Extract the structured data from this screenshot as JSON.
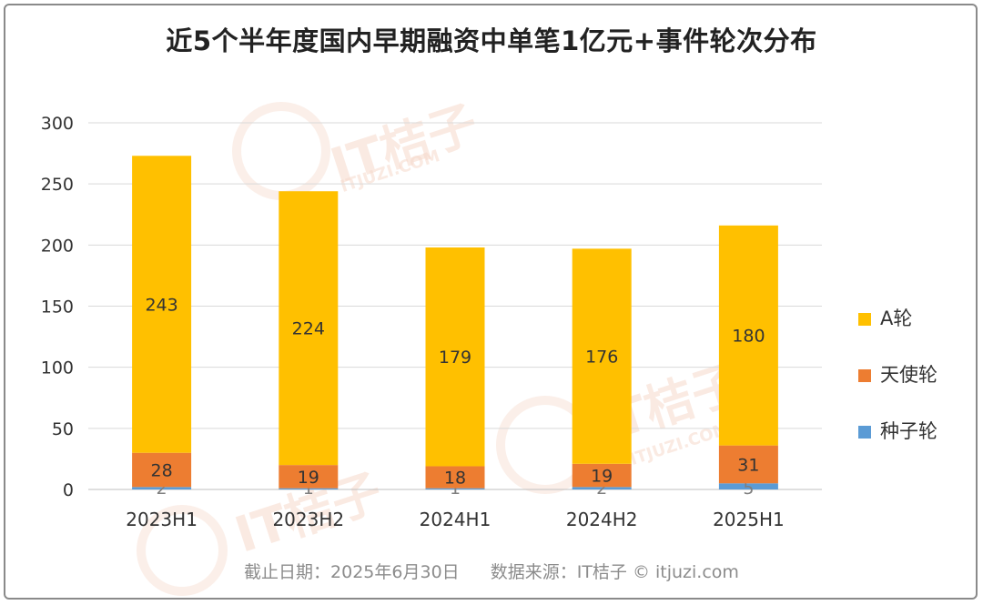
{
  "title": "近5个半年度国内早期融资中单笔1亿元+事件轮次分布",
  "footer": {
    "date": "截止日期：2025年6月30日",
    "source": "数据来源：IT桔子 © itjuzi.com"
  },
  "watermark": {
    "brand": "IT桔子",
    "domain": "ITJUZI.COM"
  },
  "colors": {
    "a_round": "#FFC000",
    "angel": "#ED7D31",
    "seed": "#5B9BD5",
    "grid": "#D9D9D9",
    "axis_text": "#333333"
  },
  "chart_data": {
    "type": "bar",
    "stacked": true,
    "categories": [
      "2023H1",
      "2023H2",
      "2024H1",
      "2024H2",
      "2025H1"
    ],
    "series": [
      {
        "name": "种子轮",
        "values": [
          2,
          1,
          1,
          2,
          5
        ],
        "color": "#5B9BD5"
      },
      {
        "name": "天使轮",
        "values": [
          28,
          19,
          18,
          19,
          31
        ],
        "color": "#ED7D31"
      },
      {
        "name": "A轮",
        "values": [
          243,
          224,
          179,
          176,
          180
        ],
        "color": "#FFC000"
      }
    ],
    "ylim": [
      0,
      300
    ],
    "yticks": [
      0,
      50,
      100,
      150,
      200,
      250,
      300
    ],
    "grid": true,
    "legend": {
      "position": "right",
      "order": [
        "A轮",
        "天使轮",
        "种子轮"
      ]
    }
  }
}
